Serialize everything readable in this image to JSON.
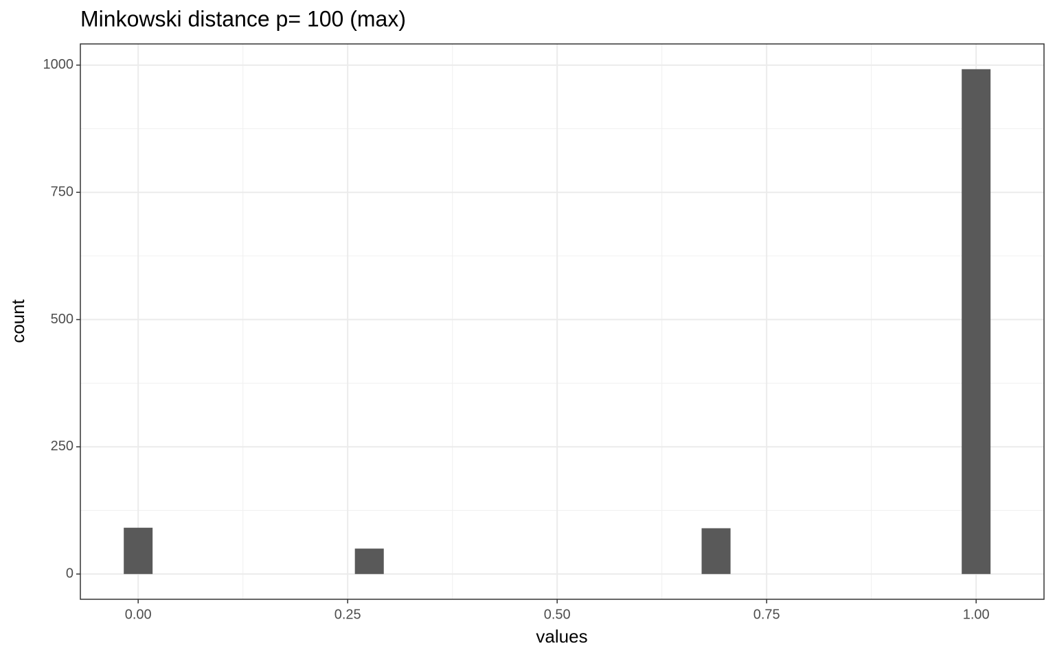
{
  "chart_data": {
    "type": "histogram",
    "title": "Minkowski distance p= 100 (max)",
    "x_label": "values",
    "y_label": "count",
    "bins": [
      -0.0172,
      0.0172,
      0.0517,
      0.0862,
      0.1207,
      0.1552,
      0.1897,
      0.2241,
      0.2586,
      0.2931,
      0.3276,
      0.3621,
      0.3966,
      0.431,
      0.4655,
      0.5,
      0.5345,
      0.569,
      0.6034,
      0.6379,
      0.6724,
      0.7069,
      0.7414,
      0.7759,
      0.8103,
      0.8448,
      0.8793,
      0.9138,
      0.9483,
      0.9828,
      1.0172
    ],
    "values": [
      91,
      0,
      0,
      0,
      0,
      0,
      0,
      0,
      50,
      0,
      0,
      0,
      0,
      0,
      0,
      0,
      0,
      0,
      0,
      0,
      90,
      0,
      0,
      0,
      0,
      0,
      0,
      0,
      0,
      992
    ],
    "color": "#595959",
    "xlim": [
      -0.069,
      1.081
    ],
    "ylim": [
      -49.6,
      1041.6
    ],
    "xticks": [
      {
        "value": 0,
        "label": "0.00"
      },
      {
        "value": 0.25,
        "label": "0.25"
      },
      {
        "value": 0.5,
        "label": "0.50"
      },
      {
        "value": 0.75,
        "label": "0.75"
      },
      {
        "value": 1,
        "label": "1.00"
      }
    ],
    "yticks": [
      0,
      250,
      500,
      750,
      1000
    ],
    "xminor": [
      0.125,
      0.375,
      0.625,
      0.875
    ],
    "yminor": [
      125,
      375,
      625,
      875
    ],
    "grid": true
  }
}
